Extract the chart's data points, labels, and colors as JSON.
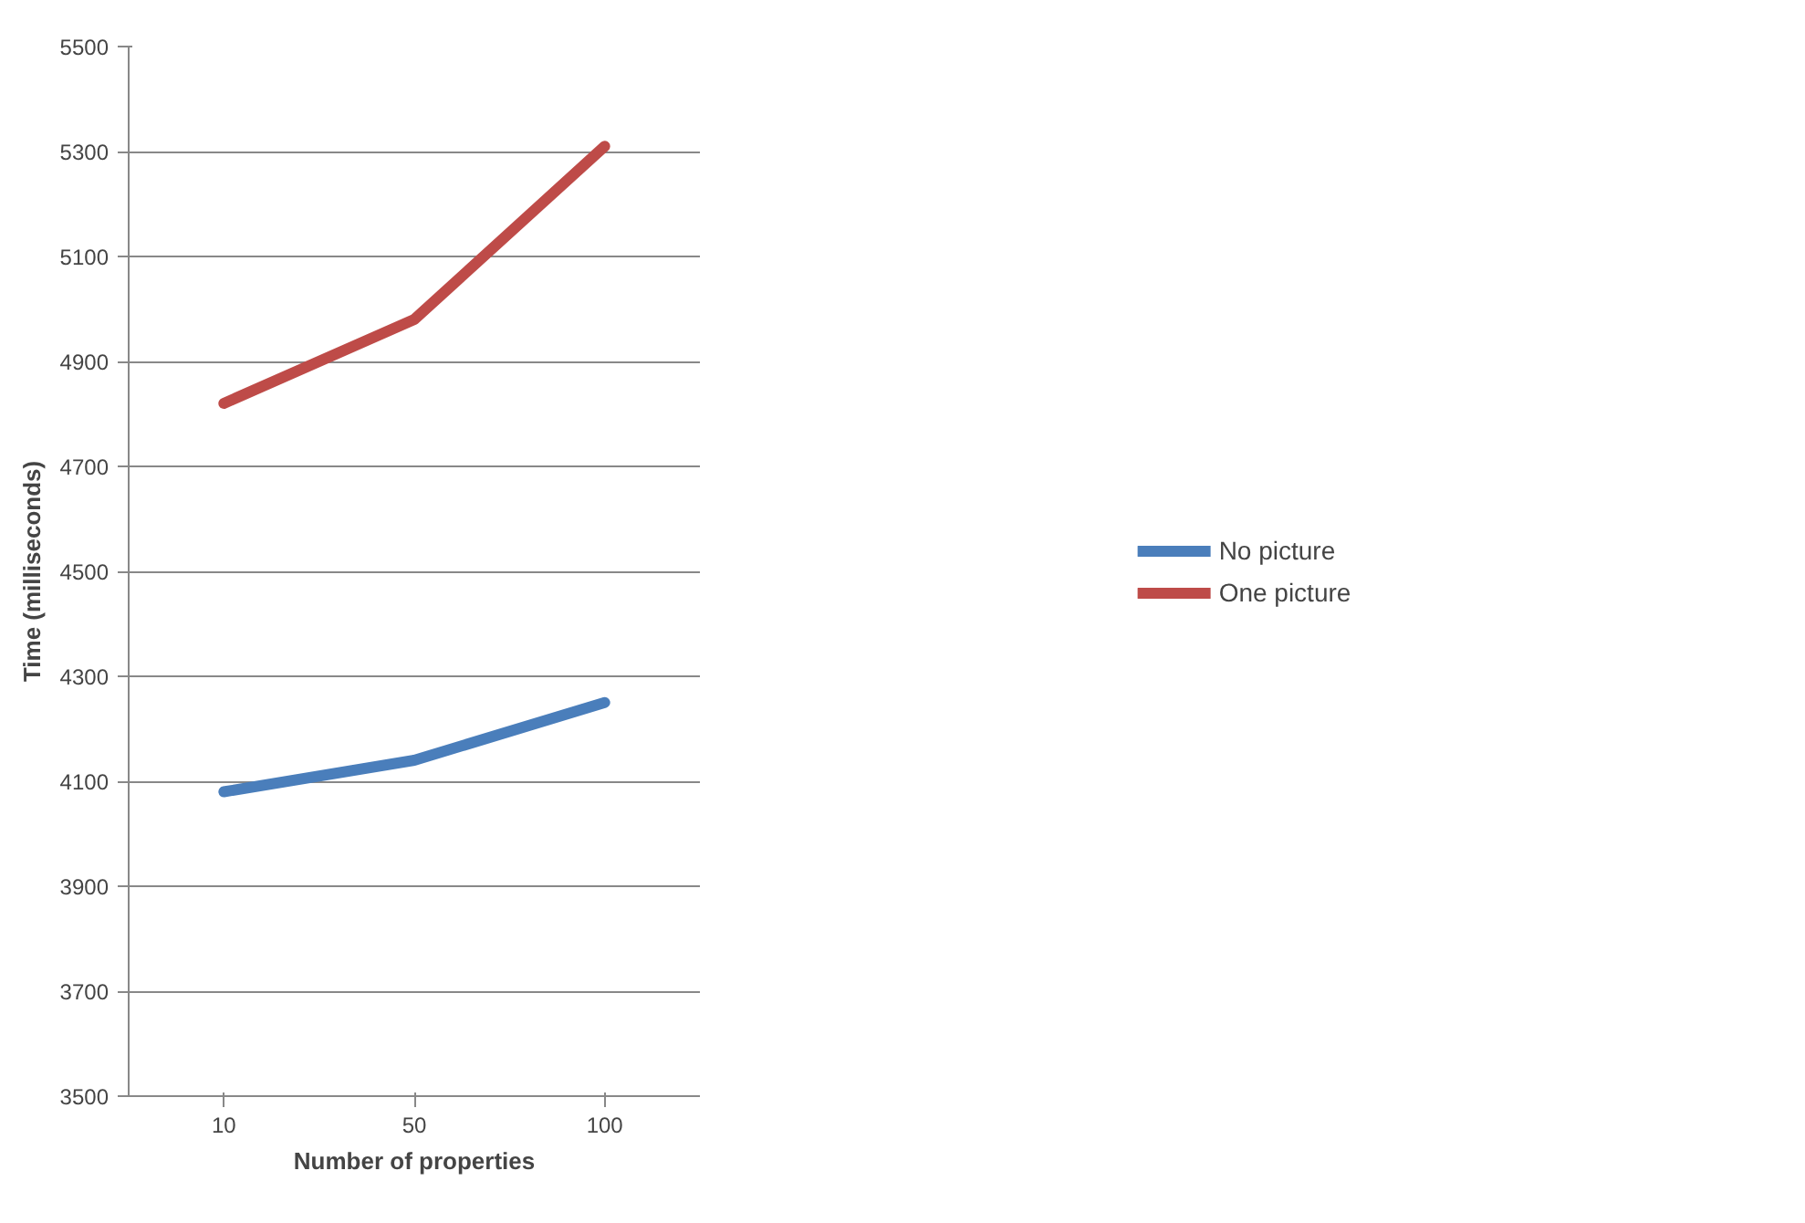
{
  "chart_data": {
    "type": "line",
    "xlabel": "Number of properties",
    "ylabel": "Time (milliseconds)",
    "categories": [
      "10",
      "50",
      "100"
    ],
    "series": [
      {
        "name": "No picture",
        "color": "#4a7ebb",
        "values": [
          4080,
          4140,
          4250
        ]
      },
      {
        "name": "One picture",
        "color": "#be4b48",
        "values": [
          4820,
          4980,
          5310
        ]
      }
    ],
    "ylim": [
      3500,
      5500
    ],
    "yticks": [
      3500,
      3700,
      3900,
      4100,
      4300,
      4500,
      4700,
      4900,
      5100,
      5300,
      5500
    ],
    "grid": "y",
    "legend": "right",
    "marker": "none",
    "line_style": "solid"
  }
}
